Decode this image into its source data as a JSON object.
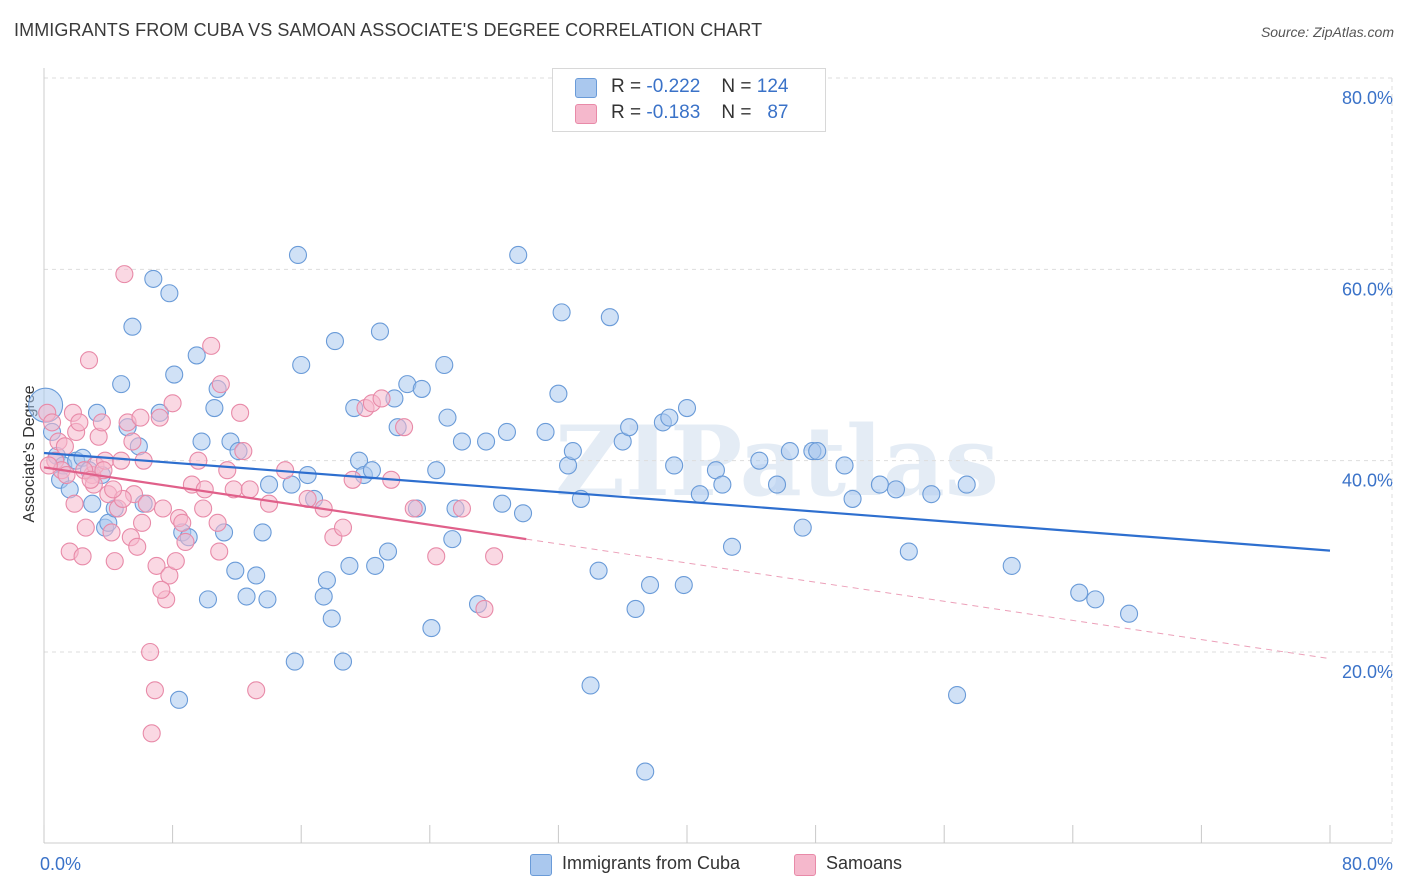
{
  "header": {
    "title": "IMMIGRANTS FROM CUBA VS SAMOAN ASSOCIATE'S DEGREE CORRELATION CHART",
    "source": "Source: ZipAtlas.com"
  },
  "watermark": "ZIPatlas",
  "legend_stats": [
    {
      "r_label": "R =",
      "r_value": "-0.222",
      "n_label": "N =",
      "n_value": "124"
    },
    {
      "r_label": "R =",
      "r_value": "-0.183",
      "n_label": "N =",
      "n_value": "87"
    }
  ],
  "colors": {
    "cuba_fill": "#aac8ee",
    "cuba_stroke": "#6a9bd8",
    "cuba_line": "#2e6fcf",
    "samoa_fill": "#f5b8cc",
    "samoa_stroke": "#e88aa8",
    "samoa_line": "#e0608a",
    "grid": "#dddddd",
    "axis_text": "#3a72c8"
  },
  "chart_data": {
    "type": "scatter",
    "title": "IMMIGRANTS FROM CUBA VS SAMOAN ASSOCIATE'S DEGREE CORRELATION CHART",
    "ylabel": "Associate's Degree",
    "xlabel": "",
    "xlim": [
      0,
      80
    ],
    "ylim": [
      0,
      85
    ],
    "x_ticks": [
      "0.0%",
      "80.0%"
    ],
    "y_ticks": [
      {
        "value": 20,
        "label": "20.0%"
      },
      {
        "value": 40,
        "label": "40.0%"
      },
      {
        "value": 60,
        "label": "60.0%"
      },
      {
        "value": 80,
        "label": "80.0%"
      }
    ],
    "grid": true,
    "legend_position": "bottom",
    "series": [
      {
        "name": "Immigrants from Cuba",
        "trend": {
          "x0": 0,
          "y0": 40.8,
          "x1": 80,
          "y1": 30.6,
          "solid_to": 80
        },
        "points": [
          [
            0.1,
            45.8
          ],
          [
            0.5,
            43.0
          ],
          [
            0.8,
            40.5
          ],
          [
            1.0,
            38.0
          ],
          [
            1.2,
            39.5
          ],
          [
            1.6,
            37.0
          ],
          [
            2.0,
            40.0
          ],
          [
            2.4,
            40.3
          ],
          [
            2.8,
            39.0
          ],
          [
            3.0,
            35.5
          ],
          [
            3.3,
            45.0
          ],
          [
            3.6,
            38.5
          ],
          [
            3.8,
            33.0
          ],
          [
            4.0,
            33.5
          ],
          [
            4.4,
            35.0
          ],
          [
            4.8,
            48.0
          ],
          [
            5.2,
            43.5
          ],
          [
            5.5,
            54.0
          ],
          [
            5.9,
            41.5
          ],
          [
            6.2,
            35.5
          ],
          [
            6.8,
            59.0
          ],
          [
            7.2,
            45.0
          ],
          [
            7.8,
            57.5
          ],
          [
            8.1,
            49.0
          ],
          [
            8.4,
            15.0
          ],
          [
            8.6,
            32.5
          ],
          [
            9.0,
            32.0
          ],
          [
            9.5,
            51.0
          ],
          [
            9.8,
            42.0
          ],
          [
            10.2,
            25.5
          ],
          [
            10.6,
            45.5
          ],
          [
            10.8,
            47.5
          ],
          [
            11.2,
            32.5
          ],
          [
            11.6,
            42.0
          ],
          [
            11.9,
            28.5
          ],
          [
            12.1,
            41.0
          ],
          [
            12.6,
            25.8
          ],
          [
            13.2,
            28.0
          ],
          [
            13.6,
            32.5
          ],
          [
            13.9,
            25.5
          ],
          [
            14.0,
            37.5
          ],
          [
            15.4,
            37.5
          ],
          [
            15.6,
            19.0
          ],
          [
            15.8,
            61.5
          ],
          [
            16.0,
            50.0
          ],
          [
            16.4,
            38.5
          ],
          [
            16.8,
            36.0
          ],
          [
            17.4,
            25.8
          ],
          [
            17.6,
            27.5
          ],
          [
            17.9,
            23.5
          ],
          [
            18.1,
            52.5
          ],
          [
            18.6,
            19.0
          ],
          [
            19.0,
            29.0
          ],
          [
            19.3,
            45.5
          ],
          [
            19.6,
            40.0
          ],
          [
            19.9,
            38.5
          ],
          [
            20.4,
            39.0
          ],
          [
            20.6,
            29.0
          ],
          [
            20.9,
            53.5
          ],
          [
            21.4,
            30.5
          ],
          [
            21.8,
            46.5
          ],
          [
            22.0,
            43.5
          ],
          [
            22.6,
            48.0
          ],
          [
            23.2,
            35.0
          ],
          [
            23.5,
            47.5
          ],
          [
            24.1,
            22.5
          ],
          [
            24.4,
            39.0
          ],
          [
            24.9,
            50.0
          ],
          [
            25.1,
            44.5
          ],
          [
            25.4,
            31.8
          ],
          [
            25.6,
            35.0
          ],
          [
            26.0,
            42.0
          ],
          [
            27.0,
            25.0
          ],
          [
            27.5,
            42.0
          ],
          [
            28.5,
            35.5
          ],
          [
            28.8,
            43.0
          ],
          [
            29.5,
            61.5
          ],
          [
            29.8,
            34.5
          ],
          [
            31.2,
            43.0
          ],
          [
            32.0,
            47.0
          ],
          [
            32.2,
            55.5
          ],
          [
            32.6,
            39.5
          ],
          [
            32.9,
            41.0
          ],
          [
            33.4,
            36.0
          ],
          [
            34.0,
            16.5
          ],
          [
            34.5,
            28.5
          ],
          [
            35.2,
            55.0
          ],
          [
            36.0,
            42.0
          ],
          [
            36.4,
            43.5
          ],
          [
            36.8,
            24.5
          ],
          [
            37.4,
            7.5
          ],
          [
            37.7,
            27.0
          ],
          [
            38.5,
            44.0
          ],
          [
            38.9,
            44.5
          ],
          [
            39.2,
            39.5
          ],
          [
            39.8,
            27.0
          ],
          [
            40.0,
            45.5
          ],
          [
            40.8,
            36.5
          ],
          [
            41.8,
            39.0
          ],
          [
            42.2,
            37.5
          ],
          [
            42.8,
            31.0
          ],
          [
            44.5,
            40.0
          ],
          [
            45.6,
            37.5
          ],
          [
            46.4,
            41.0
          ],
          [
            47.2,
            33.0
          ],
          [
            47.8,
            41.0
          ],
          [
            48.1,
            41.0
          ],
          [
            49.8,
            39.5
          ],
          [
            50.3,
            36.0
          ],
          [
            52.0,
            37.5
          ],
          [
            53.0,
            37.0
          ],
          [
            53.8,
            30.5
          ],
          [
            55.2,
            36.5
          ],
          [
            56.8,
            15.5
          ],
          [
            57.4,
            37.5
          ],
          [
            60.2,
            29.0
          ],
          [
            64.4,
            26.2
          ],
          [
            65.4,
            25.5
          ],
          [
            67.5,
            24.0
          ]
        ]
      },
      {
        "name": "Samoans",
        "trend": {
          "x0": 0,
          "y0": 39.3,
          "x1": 80,
          "y1": 19.3,
          "solid_to": 30
        },
        "points": [
          [
            0.2,
            45.0
          ],
          [
            0.5,
            44.0
          ],
          [
            0.7,
            40.0
          ],
          [
            0.9,
            42.0
          ],
          [
            1.1,
            39.0
          ],
          [
            1.4,
            38.5
          ],
          [
            1.6,
            30.5
          ],
          [
            1.8,
            45.0
          ],
          [
            2.0,
            43.0
          ],
          [
            2.2,
            44.0
          ],
          [
            2.4,
            30.0
          ],
          [
            2.6,
            33.0
          ],
          [
            2.8,
            50.5
          ],
          [
            3.0,
            38.5
          ],
          [
            3.2,
            39.5
          ],
          [
            3.4,
            42.5
          ],
          [
            3.6,
            44.0
          ],
          [
            3.8,
            40.0
          ],
          [
            4.0,
            36.5
          ],
          [
            4.2,
            32.5
          ],
          [
            4.4,
            29.5
          ],
          [
            4.6,
            35.0
          ],
          [
            4.8,
            40.0
          ],
          [
            5.0,
            59.5
          ],
          [
            5.2,
            44.0
          ],
          [
            5.4,
            32.0
          ],
          [
            5.6,
            36.5
          ],
          [
            5.8,
            31.0
          ],
          [
            6.0,
            44.5
          ],
          [
            6.2,
            40.0
          ],
          [
            6.4,
            35.5
          ],
          [
            6.6,
            20.0
          ],
          [
            6.7,
            11.5
          ],
          [
            6.9,
            16.0
          ],
          [
            7.0,
            29.0
          ],
          [
            7.2,
            44.5
          ],
          [
            7.4,
            35.0
          ],
          [
            7.6,
            25.5
          ],
          [
            7.8,
            28.0
          ],
          [
            8.0,
            46.0
          ],
          [
            8.2,
            29.5
          ],
          [
            8.4,
            34.0
          ],
          [
            8.6,
            33.5
          ],
          [
            9.2,
            37.5
          ],
          [
            9.6,
            40.0
          ],
          [
            10.0,
            37.0
          ],
          [
            10.4,
            52.0
          ],
          [
            10.8,
            33.5
          ],
          [
            11.0,
            48.0
          ],
          [
            11.4,
            39.0
          ],
          [
            11.8,
            37.0
          ],
          [
            12.2,
            45.0
          ],
          [
            12.8,
            37.0
          ],
          [
            13.2,
            16.0
          ],
          [
            14.0,
            35.5
          ],
          [
            15.0,
            39.0
          ],
          [
            16.4,
            36.0
          ],
          [
            17.4,
            35.0
          ],
          [
            18.0,
            32.0
          ],
          [
            18.6,
            33.0
          ],
          [
            19.2,
            38.0
          ],
          [
            20.0,
            45.5
          ],
          [
            20.4,
            46.0
          ],
          [
            21.0,
            46.5
          ],
          [
            21.6,
            38.0
          ],
          [
            22.4,
            43.5
          ],
          [
            23.0,
            35.0
          ],
          [
            24.4,
            30.0
          ],
          [
            26.0,
            35.0
          ],
          [
            27.4,
            24.5
          ],
          [
            28.0,
            30.0
          ],
          [
            2.5,
            39.0
          ],
          [
            3.1,
            37.5
          ],
          [
            1.3,
            41.5
          ],
          [
            4.9,
            36.0
          ],
          [
            5.5,
            42.0
          ],
          [
            6.1,
            33.5
          ],
          [
            7.3,
            26.5
          ],
          [
            8.8,
            31.5
          ],
          [
            9.9,
            35.0
          ],
          [
            10.9,
            30.5
          ],
          [
            12.4,
            41.0
          ],
          [
            1.9,
            35.5
          ],
          [
            2.9,
            38.0
          ],
          [
            3.7,
            39.0
          ],
          [
            0.3,
            39.5
          ],
          [
            4.3,
            37.0
          ]
        ]
      }
    ]
  },
  "bottom_legend": [
    {
      "label": "Immigrants from Cuba"
    },
    {
      "label": "Samoans"
    }
  ]
}
